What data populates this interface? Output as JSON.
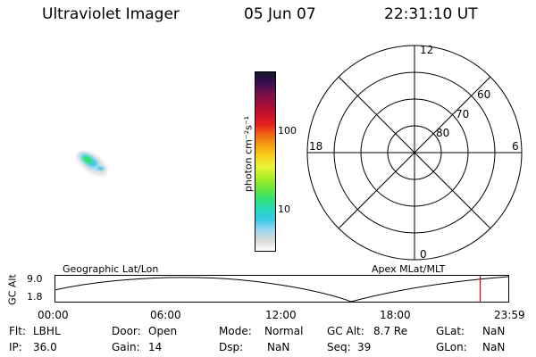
{
  "header": {
    "instrument": "Ultraviolet Imager",
    "date": "05 Jun 07",
    "time": "22:31:10 UT"
  },
  "colorbar": {
    "label": "photon cm⁻²s⁻¹",
    "ticks": [
      "100",
      "10"
    ],
    "colors": [
      "#ffffff",
      "#d8d8d8",
      "#9bd7f0",
      "#35c8e8",
      "#29d8b8",
      "#33e070",
      "#6ee63a",
      "#b0ee28",
      "#eaf23a",
      "#f7d21e",
      "#f7a112",
      "#ef6a12",
      "#e5231c",
      "#c5102a",
      "#9e0e3a",
      "#74124c",
      "#3a0c52",
      "#141428"
    ]
  },
  "polar_plot": {
    "mlt_labels": {
      "top": "12",
      "bottom": "0",
      "left": "18",
      "right": "6"
    },
    "lat_labels": [
      "60",
      "70",
      "80"
    ]
  },
  "timeline": {
    "left_title": "Geographic Lat/Lon",
    "right_title": "Apex MLat/MLT",
    "y_axis_label": "GC Alt",
    "y_ticks": [
      "9.0",
      "1.8"
    ],
    "x_ticks": [
      "00:00",
      "06:00",
      "12:00",
      "18:00",
      "23:59"
    ],
    "current_time_fraction": 0.938
  },
  "info": {
    "filter": {
      "label": "Flt:",
      "value": "LBHL"
    },
    "ip": {
      "label": "IP:",
      "value": "36.0"
    },
    "door": {
      "label": "Door:",
      "value": "Open"
    },
    "gain": {
      "label": "Gain:",
      "value": "14"
    },
    "mode": {
      "label": "Mode:",
      "value": "Normal"
    },
    "dsp": {
      "label": "Dsp:",
      "value": "NaN"
    },
    "gc_alt": {
      "label": "GC Alt:",
      "value": "8.7 Re"
    },
    "seq": {
      "label": "Seq:",
      "value": "39"
    },
    "glat": {
      "label": "GLat:",
      "value": "NaN"
    },
    "glon": {
      "label": "GLon:",
      "value": "NaN"
    }
  }
}
